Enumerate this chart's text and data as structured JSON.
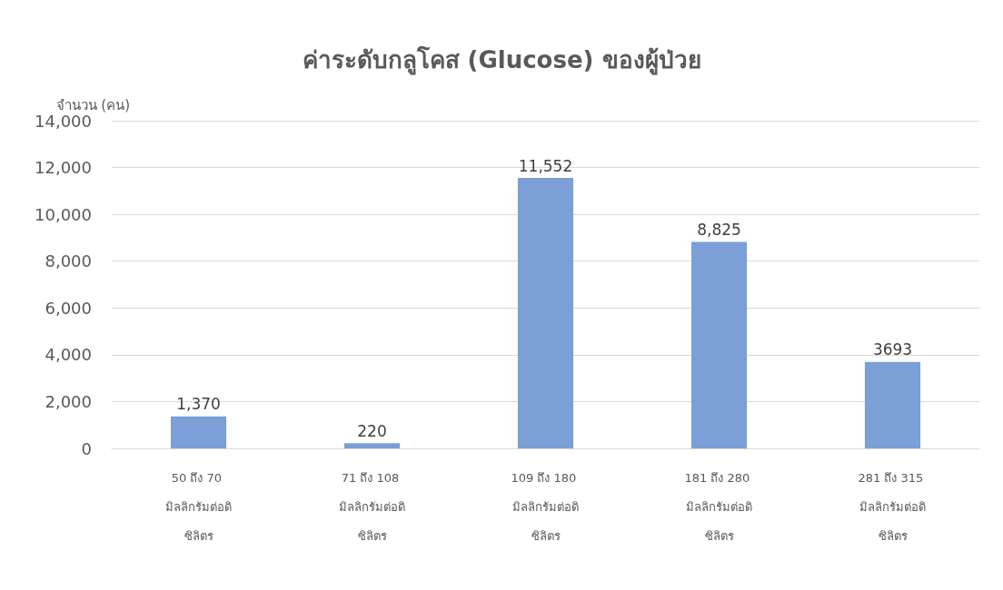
{
  "chart_data": {
    "type": "bar",
    "title": "ค่าระดับกลูโคส (Glucose) ของผู้ป่วย",
    "ylabel": "จำนวน (คน)",
    "categories": [
      "50 ถึง 70 มิลลิกรัมต่อดิซิลิตร",
      "71 ถึง 108 มิลลิกรัมต่อดิซิลิตร",
      "109 ถึง 180 มิลลิกรัมต่อดิซิลิตร",
      "181 ถึง 280 มิลลิกรัมต่อดิซิลิตร",
      "281 ถึง 315 มิลลิกรัมต่อดิซิลิตร"
    ],
    "values": [
      1370,
      220,
      11552,
      8825,
      3693
    ],
    "value_labels": [
      "1,370",
      "220",
      "11,552",
      "8,825",
      "3693"
    ],
    "color": "#7b9fd6",
    "ylim": [
      0,
      14000
    ],
    "yticks": [
      {
        "value": 0,
        "label": "0"
      },
      {
        "value": 2000,
        "label": "2,000"
      },
      {
        "value": 4000,
        "label": "4,000"
      },
      {
        "value": 6000,
        "label": "6,000"
      },
      {
        "value": 8000,
        "label": "8,000"
      },
      {
        "value": 10000,
        "label": "10,000"
      },
      {
        "value": 12000,
        "label": "12,000"
      },
      {
        "value": 14000,
        "label": "14,000"
      }
    ],
    "grid": "y"
  }
}
